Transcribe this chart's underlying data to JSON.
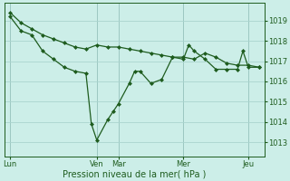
{
  "bg_color": "#cceee8",
  "grid_color": "#aad4ce",
  "line_color": "#1e5c1e",
  "marker_color": "#1e5c1e",
  "xlabel": "Pression niveau de la mer( hPa )",
  "yticks": [
    1013,
    1014,
    1015,
    1016,
    1017,
    1018,
    1019
  ],
  "ylim": [
    1012.3,
    1019.9
  ],
  "xlim": [
    0,
    24
  ],
  "xtick_labels": [
    "Lun",
    "Ven",
    "Mar",
    "Mer",
    "Jeu"
  ],
  "xtick_positions": [
    0.5,
    8.5,
    10.5,
    16.5,
    22.5
  ],
  "vlines": [
    0.5,
    8.5,
    10.5,
    16.5,
    22.5
  ],
  "series1_x": [
    0.5,
    1.5,
    2.5,
    3.5,
    4.5,
    5.5,
    6.5,
    7.5,
    8.5,
    9.5,
    10.5,
    11.5,
    12.5,
    13.5,
    14.5,
    15.5,
    16.5,
    17.5,
    18.5,
    19.5,
    20.5,
    21.5,
    22.5,
    23.5
  ],
  "series1_y": [
    1019.4,
    1018.9,
    1018.6,
    1018.3,
    1018.1,
    1017.9,
    1017.7,
    1017.6,
    1017.8,
    1017.7,
    1017.7,
    1017.6,
    1017.5,
    1017.4,
    1017.3,
    1017.2,
    1017.2,
    1017.1,
    1017.4,
    1017.2,
    1016.9,
    1016.8,
    1016.8,
    1016.7
  ],
  "series2_x": [
    0.5,
    1.5,
    2.5,
    3.5,
    4.5,
    5.5,
    6.5,
    7.5,
    8.0,
    8.5,
    9.5,
    10.0,
    10.5,
    11.5,
    12.0,
    12.5,
    13.5,
    14.5,
    15.5,
    16.5,
    17.0,
    17.5,
    18.5,
    19.5,
    20.5,
    21.5,
    22.0,
    22.5,
    23.5
  ],
  "series2_y": [
    1019.2,
    1018.5,
    1018.3,
    1017.5,
    1017.1,
    1016.7,
    1016.5,
    1016.4,
    1013.9,
    1013.1,
    1014.1,
    1014.5,
    1014.9,
    1015.9,
    1016.5,
    1016.5,
    1015.9,
    1016.1,
    1017.2,
    1017.1,
    1017.8,
    1017.5,
    1017.1,
    1016.6,
    1016.6,
    1016.6,
    1017.5,
    1016.7,
    1016.7
  ]
}
